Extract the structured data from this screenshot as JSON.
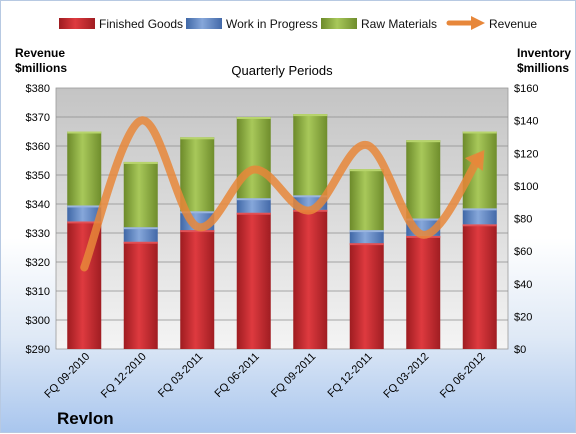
{
  "chart_data": {
    "type": "bar",
    "subtitle": "Quarterly Periods",
    "company": "Revlon",
    "categories": [
      "FQ 09-2010",
      "FQ 12-2010",
      "FQ 03-2011",
      "FQ 06-2011",
      "FQ 09-2011",
      "FQ 12-2011",
      "FQ 03-2012",
      "FQ 06-2012"
    ],
    "left_axis": {
      "label_line1": "Revenue",
      "label_line2": "$millions",
      "min": 290,
      "max": 380,
      "step": 10,
      "tick_labels": [
        "$290",
        "$300",
        "$310",
        "$320",
        "$330",
        "$340",
        "$350",
        "$360",
        "$370",
        "$380"
      ]
    },
    "right_axis": {
      "label_line1": "Inventory",
      "label_line2": "$millions",
      "min": 0,
      "max": 160,
      "step": 20,
      "tick_labels": [
        "$0",
        "$20",
        "$40",
        "$60",
        "$80",
        "$100",
        "$120",
        "$140",
        "$160"
      ]
    },
    "series": [
      {
        "name": "Finished Goods",
        "axis": "left",
        "kind": "stacked-bar",
        "color": "#c0272d",
        "values": [
          334,
          327,
          331,
          337,
          338,
          326.5,
          329,
          333
        ]
      },
      {
        "name": "Work in Progress",
        "axis": "left",
        "kind": "stacked-bar",
        "color": "#5b84c4",
        "values": [
          5.5,
          5,
          6.5,
          5,
          5,
          4.5,
          6,
          5.5
        ]
      },
      {
        "name": "Raw Materials",
        "axis": "left",
        "kind": "stacked-bar",
        "color": "#8cac3f",
        "values": [
          25.5,
          22.5,
          25.5,
          28,
          28,
          21,
          27,
          26.5
        ]
      },
      {
        "name": "Revenue",
        "axis": "right",
        "kind": "line",
        "color": "#e7873a",
        "values": [
          50,
          140,
          75,
          110,
          85,
          125,
          70,
          118
        ]
      }
    ],
    "legend": {
      "position": "top"
    },
    "grid": true
  }
}
